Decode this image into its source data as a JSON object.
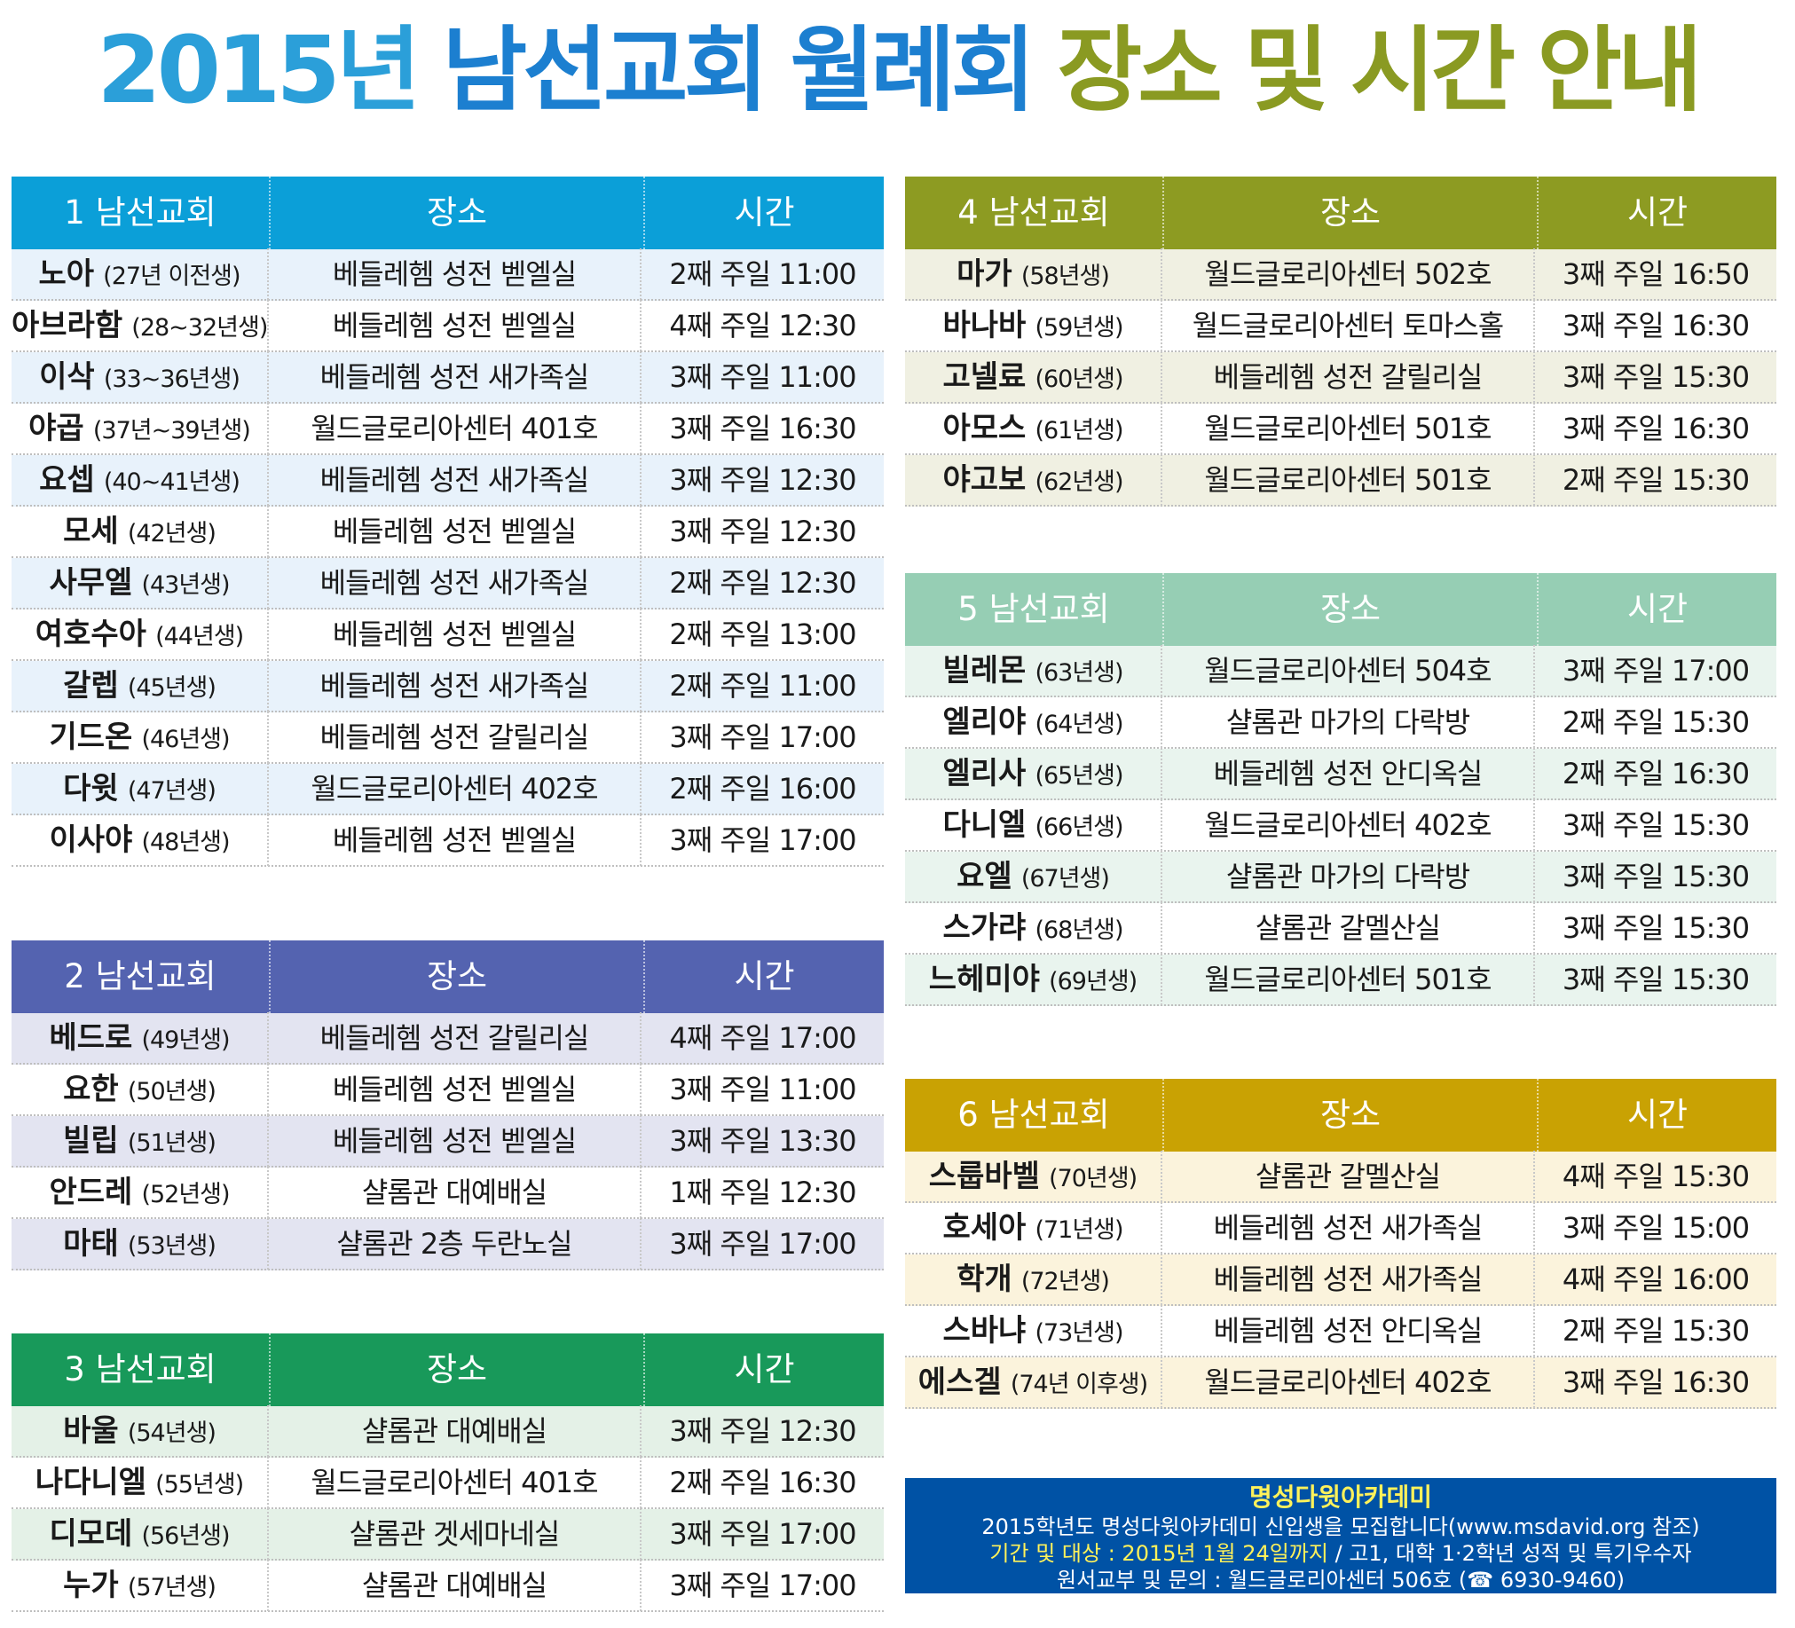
{
  "title": {
    "parts": [
      {
        "text": "2015년",
        "color": "#2b9fd9"
      },
      {
        "text": "남선교회",
        "color": "#1c7fd0"
      },
      {
        "text": "월례회",
        "color": "#1c7fd0"
      },
      {
        "text": "장소",
        "color": "#8a9a22"
      },
      {
        "text": "및",
        "color": "#8a9a22"
      },
      {
        "text": "시간",
        "color": "#8a9a22"
      },
      {
        "text": "안내",
        "color": "#8a9a22"
      }
    ]
  },
  "sections": [
    {
      "title": "1 남선교회",
      "col_place": "장소",
      "col_time": "시간",
      "header_color": "#0b9fd8",
      "row_color": "#e8f2fb",
      "rows": [
        {
          "name": "노아",
          "sub": "(27년 이전생)",
          "place": "베들레헴 성전 벧엘실",
          "time": "2째 주일 11:00"
        },
        {
          "name": "아브라함",
          "sub": "(28~32년생)",
          "place": "베들레헴 성전 벧엘실",
          "time": "4째 주일 12:30"
        },
        {
          "name": "이삭",
          "sub": "(33~36년생)",
          "place": "베들레헴 성전 새가족실",
          "time": "3째 주일 11:00"
        },
        {
          "name": "야곱",
          "sub": "(37년~39년생)",
          "place": "월드글로리아센터 401호",
          "time": "3째 주일 16:30"
        },
        {
          "name": "요셉",
          "sub": "(40~41년생)",
          "place": "베들레헴 성전 새가족실",
          "time": "3째 주일 12:30"
        },
        {
          "name": "모세",
          "sub": "(42년생)",
          "place": "베들레헴 성전 벧엘실",
          "time": "3째 주일 12:30"
        },
        {
          "name": "사무엘",
          "sub": "(43년생)",
          "place": "베들레헴 성전 새가족실",
          "time": "2째 주일 12:30"
        },
        {
          "name": "여호수아",
          "sub": "(44년생)",
          "place": "베들레헴 성전 벧엘실",
          "time": "2째 주일 13:00"
        },
        {
          "name": "갈렙",
          "sub": "(45년생)",
          "place": "베들레헴 성전 새가족실",
          "time": "2째 주일 11:00"
        },
        {
          "name": "기드온",
          "sub": "(46년생)",
          "place": "베들레헴 성전 갈릴리실",
          "time": "3째 주일 17:00"
        },
        {
          "name": "다윗",
          "sub": "(47년생)",
          "place": "월드글로리아센터 402호",
          "time": "2째 주일 16:00"
        },
        {
          "name": "이사야",
          "sub": "(48년생)",
          "place": "베들레헴 성전 벧엘실",
          "time": "3째 주일 17:00"
        }
      ]
    },
    {
      "title": "2 남선교회",
      "col_place": "장소",
      "col_time": "시간",
      "header_color": "#5463b0",
      "row_color": "#e3e4f1",
      "rows": [
        {
          "name": "베드로",
          "sub": "(49년생)",
          "place": "베들레헴 성전 갈릴리실",
          "time": "4째 주일 17:00"
        },
        {
          "name": "요한",
          "sub": "(50년생)",
          "place": "베들레헴 성전 벧엘실",
          "time": "3째 주일 11:00"
        },
        {
          "name": "빌립",
          "sub": "(51년생)",
          "place": "베들레헴 성전 벧엘실",
          "time": "3째 주일 13:30"
        },
        {
          "name": "안드레",
          "sub": "(52년생)",
          "place": "샬롬관 대예배실",
          "time": "1째 주일 12:30"
        },
        {
          "name": "마태",
          "sub": "(53년생)",
          "place": "샬롬관 2층 두란노실",
          "time": "3째 주일 17:00"
        }
      ]
    },
    {
      "title": "3 남선교회",
      "col_place": "장소",
      "col_time": "시간",
      "header_color": "#18995a",
      "row_color": "#e4f1e7",
      "rows": [
        {
          "name": "바울",
          "sub": "(54년생)",
          "place": "샬롬관 대예배실",
          "time": "3째 주일 12:30"
        },
        {
          "name": "나다니엘",
          "sub": "(55년생)",
          "place": "월드글로리아센터 401호",
          "time": "2째 주일 16:30"
        },
        {
          "name": "디모데",
          "sub": "(56년생)",
          "place": "샬롬관 겟세마네실",
          "time": "3째 주일 17:00"
        },
        {
          "name": "누가",
          "sub": "(57년생)",
          "place": "샬롬관 대예배실",
          "time": "3째 주일 17:00"
        }
      ]
    },
    {
      "title": "4 남선교회",
      "col_place": "장소",
      "col_time": "시간",
      "header_color": "#8d9b22",
      "row_color": "#f0f0e2",
      "rows": [
        {
          "name": "마가",
          "sub": "(58년생)",
          "place": "월드글로리아센터 502호",
          "time": "3째 주일 16:50"
        },
        {
          "name": "바나바",
          "sub": "(59년생)",
          "place": "월드글로리아센터 토마스홀",
          "time": "3째 주일 16:30"
        },
        {
          "name": "고넬료",
          "sub": "(60년생)",
          "place": "베들레헴 성전 갈릴리실",
          "time": "3째 주일 15:30"
        },
        {
          "name": "아모스",
          "sub": "(61년생)",
          "place": "월드글로리아센터 501호",
          "time": "3째 주일 16:30"
        },
        {
          "name": "야고보",
          "sub": "(62년생)",
          "place": "월드글로리아센터 501호",
          "time": "2째 주일 15:30"
        }
      ]
    },
    {
      "title": "5 남선교회",
      "col_place": "장소",
      "col_time": "시간",
      "header_color": "#96ceb4",
      "row_color": "#e9f4ee",
      "rows": [
        {
          "name": "빌레몬",
          "sub": "(63년생)",
          "place": "월드글로리아센터 504호",
          "time": "3째 주일 17:00"
        },
        {
          "name": "엘리야",
          "sub": "(64년생)",
          "place": "샬롬관 마가의 다락방",
          "time": "2째 주일 15:30"
        },
        {
          "name": "엘리사",
          "sub": "(65년생)",
          "place": "베들레헴 성전 안디옥실",
          "time": "2째 주일 16:30"
        },
        {
          "name": "다니엘",
          "sub": "(66년생)",
          "place": "월드글로리아센터 402호",
          "time": "3째 주일 15:30"
        },
        {
          "name": "요엘",
          "sub": "(67년생)",
          "place": "샬롬관 마가의 다락방",
          "time": "3째 주일 15:30"
        },
        {
          "name": "스가랴",
          "sub": "(68년생)",
          "place": "샬롬관 갈멜산실",
          "time": "3째 주일 15:30"
        },
        {
          "name": "느헤미야",
          "sub": "(69년생)",
          "place": "월드글로리아센터 501호",
          "time": "3째 주일 15:30"
        }
      ]
    },
    {
      "title": "6 남선교회",
      "col_place": "장소",
      "col_time": "시간",
      "header_color": "#c9a203",
      "row_color": "#fbf3dc",
      "rows": [
        {
          "name": "스룹바벨",
          "sub": "(70년생)",
          "place": "샬롬관 갈멜산실",
          "time": "4째 주일 15:30"
        },
        {
          "name": "호세아",
          "sub": "(71년생)",
          "place": "베들레헴 성전 새가족실",
          "time": "3째 주일 15:00"
        },
        {
          "name": "학개",
          "sub": "(72년생)",
          "place": "베들레헴 성전 새가족실",
          "time": "4째 주일 16:00"
        },
        {
          "name": "스바냐",
          "sub": "(73년생)",
          "place": "베들레헴 성전 안디옥실",
          "time": "2째 주일 15:30"
        },
        {
          "name": "에스겔",
          "sub": "(74년 이후생)",
          "place": "월드글로리아센터 402호",
          "time": "3째 주일 16:30"
        }
      ]
    }
  ],
  "info": {
    "title": "명성다윗아카데미",
    "line1": "2015학년도 명성다윗아카데미 신입생을 모집합니다(www.msdavid.org 참조)",
    "line2_highlight": "기간 및 대상 : 2015년 1월 24일까지",
    "line2_rest": " / 고1, 대학 1·2학년 성적 및 특기우수자",
    "line3": "원서교부 및 문의 : 월드글로리아센터 506호 (☎ 6930-9460)"
  }
}
